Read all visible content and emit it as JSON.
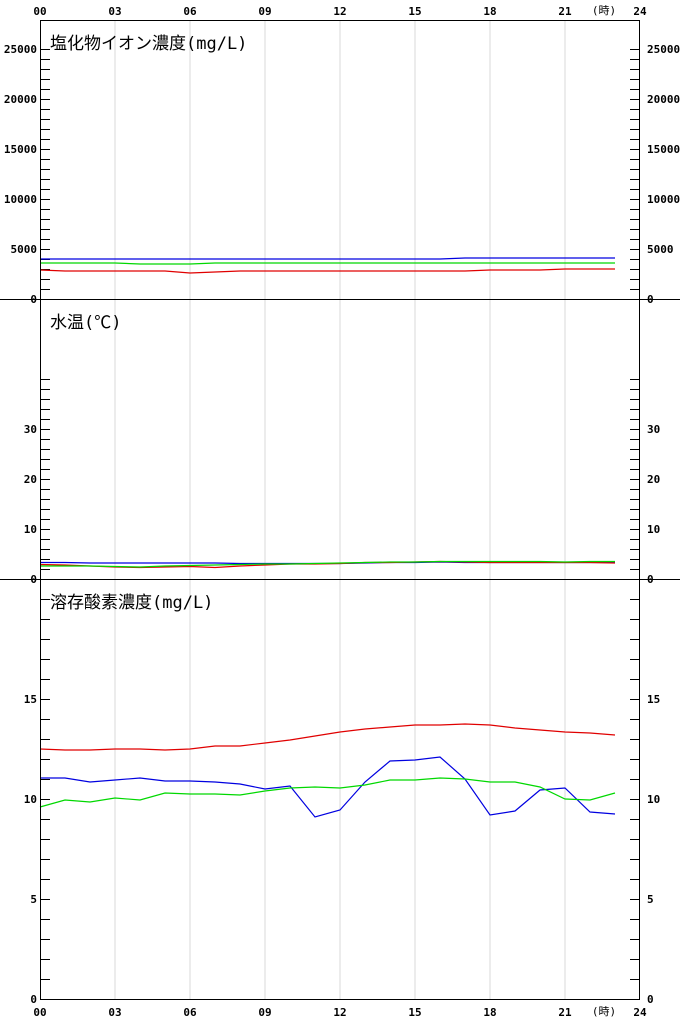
{
  "x_axis": {
    "tick_labels": [
      "00",
      "03",
      "06",
      "09",
      "12",
      "15",
      "18",
      "21",
      "24"
    ],
    "unit_label": "(時)"
  },
  "colors": {
    "red": "#e00000",
    "blue": "#0000e0",
    "green": "#00d800",
    "grid": "#d9d9d9",
    "axis": "#000000"
  },
  "chart_data": [
    {
      "type": "line",
      "title": "塩化物イオン濃度(mg/L)",
      "ylim": [
        0,
        25000
      ],
      "yticks": [
        0,
        5000,
        10000,
        15000,
        20000,
        25000
      ],
      "x": [
        0,
        1,
        2,
        3,
        4,
        5,
        6,
        7,
        8,
        9,
        10,
        11,
        12,
        13,
        14,
        15,
        16,
        17,
        18,
        19,
        20,
        21,
        22,
        23
      ],
      "series": [
        {
          "color": "blue",
          "values": [
            4000,
            4000,
            4000,
            4000,
            4000,
            4000,
            4000,
            4000,
            4000,
            4000,
            4000,
            4000,
            4000,
            4000,
            4000,
            4000,
            4000,
            4100,
            4100,
            4100,
            4100,
            4100,
            4100,
            4100
          ]
        },
        {
          "color": "green",
          "values": [
            3600,
            3600,
            3600,
            3600,
            3500,
            3500,
            3500,
            3600,
            3600,
            3600,
            3600,
            3600,
            3600,
            3600,
            3600,
            3600,
            3600,
            3600,
            3600,
            3600,
            3600,
            3600,
            3600,
            3600
          ]
        },
        {
          "color": "red",
          "values": [
            2900,
            2800,
            2800,
            2800,
            2800,
            2800,
            2600,
            2700,
            2800,
            2800,
            2800,
            2800,
            2800,
            2800,
            2800,
            2800,
            2800,
            2800,
            2900,
            2900,
            2900,
            3000,
            3000,
            3000
          ]
        }
      ]
    },
    {
      "type": "line",
      "title": "水温(℃)",
      "ylim": [
        0,
        40
      ],
      "yticks": [
        0,
        10,
        20,
        30
      ],
      "x": [
        0,
        1,
        2,
        3,
        4,
        5,
        6,
        7,
        8,
        9,
        10,
        11,
        12,
        13,
        14,
        15,
        16,
        17,
        18,
        19,
        20,
        21,
        22,
        23
      ],
      "series": [
        {
          "color": "blue",
          "values": [
            3.3,
            3.3,
            3.2,
            3.2,
            3.2,
            3.2,
            3.2,
            3.2,
            3.1,
            3.1,
            3.1,
            3.1,
            3.1,
            3.2,
            3.3,
            3.3,
            3.4,
            3.3,
            3.3,
            3.3,
            3.3,
            3.3,
            3.3,
            3.3
          ]
        },
        {
          "color": "red",
          "values": [
            2.9,
            2.8,
            2.6,
            2.4,
            2.3,
            2.4,
            2.5,
            2.3,
            2.6,
            2.8,
            3.0,
            3.0,
            3.1,
            3.3,
            3.3,
            3.4,
            3.5,
            3.4,
            3.3,
            3.3,
            3.3,
            3.3,
            3.3,
            3.2
          ]
        },
        {
          "color": "green",
          "values": [
            2.6,
            2.6,
            2.6,
            2.5,
            2.4,
            2.6,
            2.7,
            2.8,
            2.9,
            3.0,
            3.0,
            3.1,
            3.2,
            3.3,
            3.4,
            3.4,
            3.5,
            3.5,
            3.5,
            3.5,
            3.5,
            3.4,
            3.5,
            3.5
          ]
        }
      ]
    },
    {
      "type": "line",
      "title": "溶存酸素濃度(mg/L)",
      "ylim": [
        0,
        20
      ],
      "yticks": [
        0,
        5,
        10,
        15
      ],
      "x": [
        0,
        1,
        2,
        3,
        4,
        5,
        6,
        7,
        8,
        9,
        10,
        11,
        12,
        13,
        14,
        15,
        16,
        17,
        18,
        19,
        20,
        21,
        22,
        23
      ],
      "series": [
        {
          "color": "red",
          "values": [
            12.5,
            12.45,
            12.45,
            12.5,
            12.5,
            12.45,
            12.5,
            12.65,
            12.65,
            12.8,
            12.95,
            13.15,
            13.35,
            13.5,
            13.6,
            13.7,
            13.7,
            13.75,
            13.7,
            13.55,
            13.45,
            13.35,
            13.3,
            13.2
          ]
        },
        {
          "color": "blue",
          "values": [
            11.05,
            11.05,
            10.85,
            10.95,
            11.05,
            10.9,
            10.9,
            10.85,
            10.75,
            10.5,
            10.65,
            9.1,
            9.45,
            10.85,
            11.9,
            11.95,
            12.1,
            11.0,
            9.2,
            9.4,
            10.45,
            10.55,
            9.35,
            9.25
          ]
        },
        {
          "color": "green",
          "values": [
            9.6,
            9.95,
            9.85,
            10.05,
            9.95,
            10.3,
            10.25,
            10.25,
            10.2,
            10.4,
            10.55,
            10.6,
            10.55,
            10.7,
            10.95,
            10.95,
            11.05,
            11.0,
            10.85,
            10.85,
            10.6,
            10.0,
            9.95,
            10.3
          ]
        }
      ]
    }
  ]
}
